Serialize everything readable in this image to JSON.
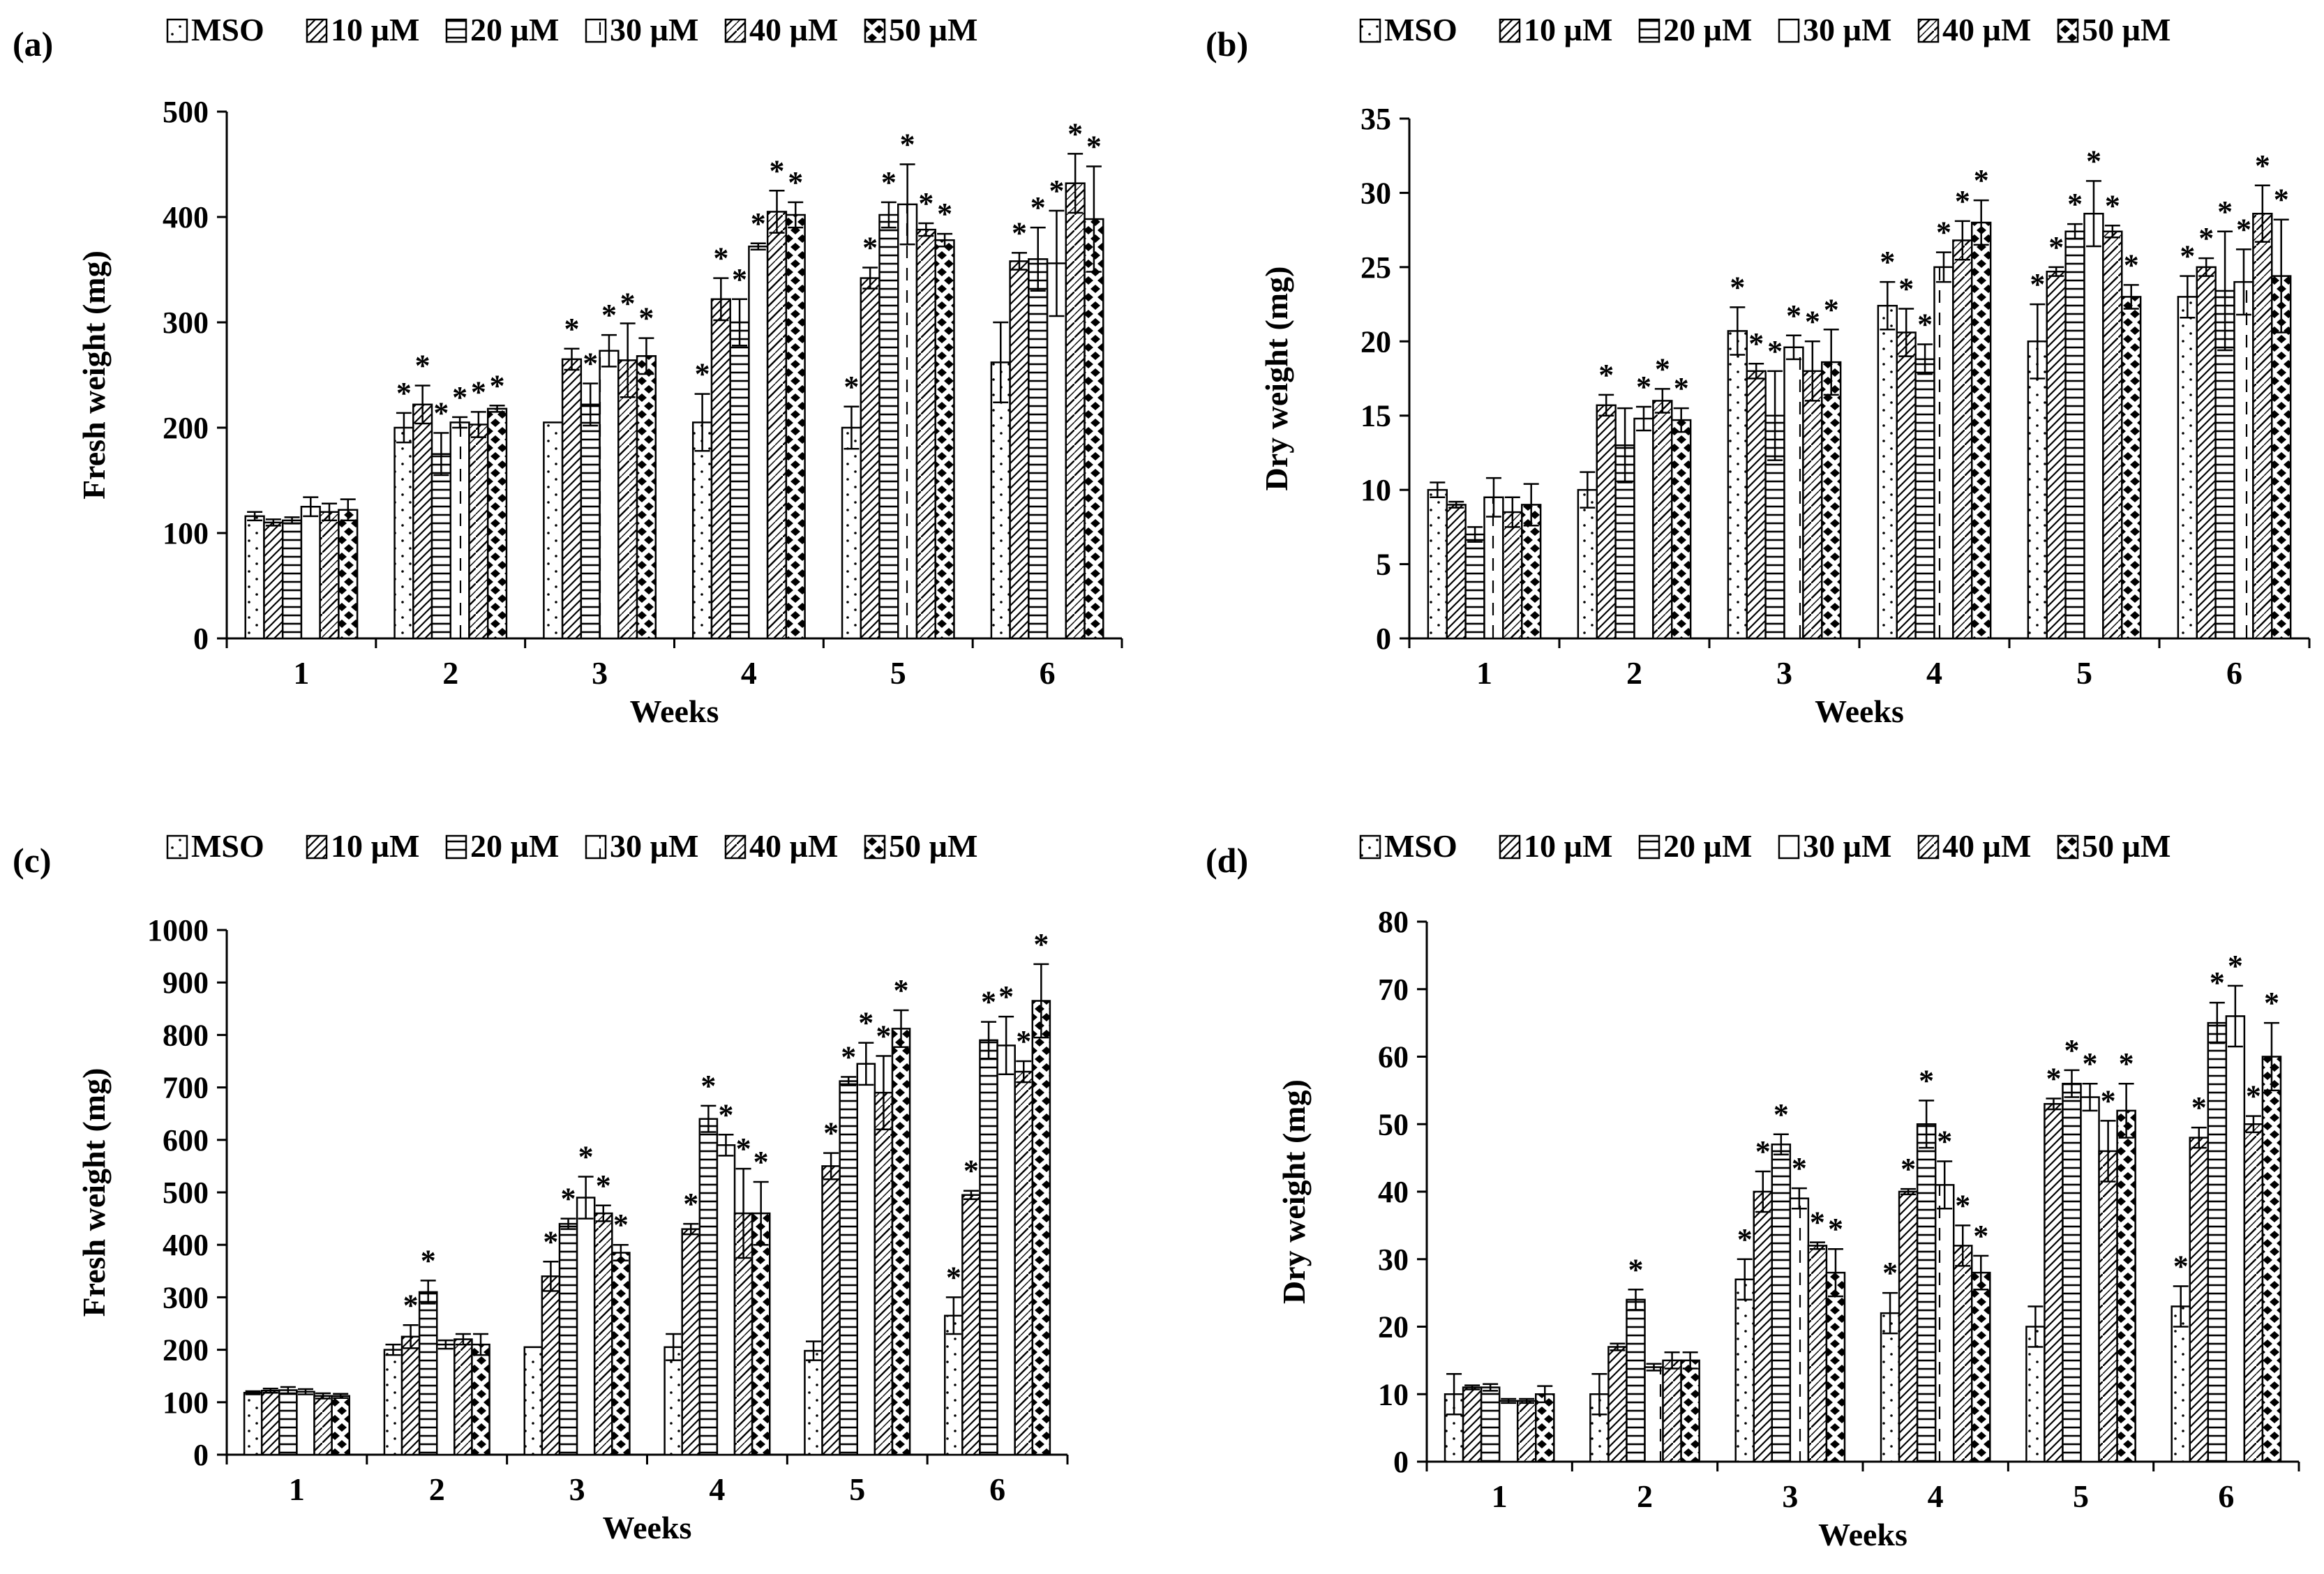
{
  "figure": {
    "legend_labels": [
      "MSO",
      "10 µM",
      "20 µM",
      "30 µM",
      "40 µM",
      "50 µM"
    ],
    "series_patterns": [
      "dots",
      "diagonal-left",
      "horizontal",
      "dashed-vertical",
      "diagonal-right-zigzag",
      "diamonds"
    ]
  },
  "chart_data": [
    {
      "panel_label": "(a)",
      "type": "bar",
      "ylabel": "Fresh weight (mg)",
      "xlabel": "Weeks",
      "categories": [
        "1",
        "2",
        "3",
        "4",
        "5",
        "6"
      ],
      "ylim": [
        0,
        500
      ],
      "yticks": [
        "0",
        "100",
        "200",
        "300",
        "400",
        "500"
      ],
      "series": [
        {
          "name": "MSO",
          "values": [
            116,
            200,
            205,
            205,
            200,
            262
          ],
          "errors": [
            4,
            14,
            0,
            27,
            20,
            38
          ],
          "sig": [
            false,
            true,
            false,
            true,
            true,
            false
          ]
        },
        {
          "name": "10 µM",
          "values": [
            110,
            222,
            265,
            322,
            342,
            358
          ],
          "errors": [
            3,
            18,
            10,
            20,
            10,
            8
          ],
          "sig": [
            false,
            true,
            true,
            true,
            true,
            true
          ]
        },
        {
          "name": "20 µM",
          "values": [
            112,
            175,
            222,
            300,
            402,
            360
          ],
          "errors": [
            3,
            20,
            20,
            22,
            12,
            30
          ],
          "sig": [
            false,
            true,
            true,
            true,
            true,
            true
          ]
        },
        {
          "name": "30 µM",
          "values": [
            125,
            205,
            273,
            372,
            412,
            356
          ],
          "errors": [
            9,
            5,
            15,
            3,
            38,
            50
          ],
          "sig": [
            false,
            true,
            true,
            true,
            true,
            true
          ]
        },
        {
          "name": "40 µM",
          "values": [
            120,
            203,
            264,
            405,
            388,
            432
          ],
          "errors": [
            8,
            12,
            35,
            20,
            6,
            28
          ],
          "sig": [
            false,
            true,
            true,
            true,
            true,
            true
          ]
        },
        {
          "name": "50 µM",
          "values": [
            122,
            218,
            268,
            402,
            378,
            398
          ],
          "errors": [
            10,
            3,
            17,
            12,
            6,
            50
          ],
          "sig": [
            false,
            true,
            true,
            true,
            true,
            true
          ]
        }
      ],
      "sig_marker": "*"
    },
    {
      "panel_label": "(b)",
      "type": "bar",
      "ylabel": "Dry weight (mg)",
      "xlabel": "Weeks",
      "categories": [
        "1",
        "2",
        "3",
        "4",
        "5",
        "6"
      ],
      "ylim": [
        0,
        35
      ],
      "yticks": [
        "0",
        "5",
        "10",
        "15",
        "20",
        "25",
        "30",
        "35"
      ],
      "series": [
        {
          "name": "MSO",
          "values": [
            10,
            10,
            20.7,
            22.4,
            20,
            23
          ],
          "errors": [
            0.5,
            1.2,
            1.6,
            1.6,
            2.5,
            1.4
          ],
          "sig": [
            false,
            false,
            true,
            true,
            true,
            true
          ]
        },
        {
          "name": "10 µM",
          "values": [
            9,
            15.7,
            18,
            20.6,
            24.7,
            25
          ],
          "errors": [
            0.2,
            0.7,
            0.5,
            1.6,
            0.3,
            0.6
          ],
          "sig": [
            false,
            true,
            true,
            true,
            true,
            true
          ]
        },
        {
          "name": "20 µM",
          "values": [
            7,
            13,
            15,
            18.8,
            27.4,
            23.4
          ],
          "errors": [
            0.5,
            2.5,
            3,
            1,
            0.5,
            4
          ],
          "sig": [
            false,
            false,
            true,
            true,
            true,
            true
          ]
        },
        {
          "name": "30 µM",
          "values": [
            9.5,
            14.8,
            19.6,
            25,
            28.6,
            24
          ],
          "errors": [
            1.3,
            0.8,
            0.8,
            1,
            2.2,
            2.2
          ],
          "sig": [
            false,
            true,
            true,
            true,
            true,
            true
          ]
        },
        {
          "name": "40 µM",
          "values": [
            8.5,
            16,
            18,
            26.8,
            27.4,
            28.6
          ],
          "errors": [
            1,
            0.8,
            2,
            1.3,
            0.4,
            1.9
          ],
          "sig": [
            false,
            true,
            true,
            true,
            true,
            true
          ]
        },
        {
          "name": "50 µM",
          "values": [
            9,
            14.7,
            18.6,
            28,
            23,
            24.4
          ],
          "errors": [
            1.4,
            0.8,
            2.2,
            1.5,
            0.8,
            3.8
          ],
          "sig": [
            false,
            true,
            true,
            true,
            true,
            true
          ]
        }
      ],
      "sig_marker": "*"
    },
    {
      "panel_label": "(c)",
      "type": "bar",
      "ylabel": "Fresh weight (mg)",
      "xlabel": "Weeks",
      "categories": [
        "1",
        "2",
        "3",
        "4",
        "5",
        "6"
      ],
      "ylim": [
        0,
        1000
      ],
      "yticks": [
        "0",
        "100",
        "200",
        "300",
        "400",
        "500",
        "600",
        "700",
        "800",
        "900",
        "1000"
      ],
      "series": [
        {
          "name": "MSO",
          "values": [
            118,
            200,
            205,
            205,
            198,
            265
          ],
          "errors": [
            3,
            10,
            0,
            25,
            18,
            35
          ],
          "sig": [
            false,
            false,
            false,
            false,
            false,
            true
          ]
        },
        {
          "name": "10 µM",
          "values": [
            122,
            225,
            340,
            430,
            550,
            495
          ],
          "errors": [
            4,
            22,
            28,
            10,
            25,
            8
          ],
          "sig": [
            false,
            true,
            true,
            true,
            true,
            true
          ]
        },
        {
          "name": "20 µM",
          "values": [
            123,
            310,
            440,
            640,
            712,
            790
          ],
          "errors": [
            6,
            22,
            10,
            25,
            8,
            35
          ],
          "sig": [
            false,
            true,
            true,
            true,
            true,
            true
          ]
        },
        {
          "name": "30 µM",
          "values": [
            120,
            210,
            490,
            590,
            745,
            780
          ],
          "errors": [
            5,
            8,
            40,
            20,
            40,
            55
          ],
          "sig": [
            false,
            false,
            true,
            true,
            true,
            true
          ]
        },
        {
          "name": "40 µM",
          "values": [
            112,
            220,
            460,
            460,
            690,
            730
          ],
          "errors": [
            5,
            10,
            15,
            85,
            70,
            20
          ],
          "sig": [
            false,
            false,
            true,
            true,
            true,
            true
          ]
        },
        {
          "name": "50 µM",
          "values": [
            112,
            210,
            385,
            460,
            812,
            865
          ],
          "errors": [
            4,
            20,
            15,
            60,
            35,
            70
          ],
          "sig": [
            false,
            false,
            true,
            true,
            true,
            true
          ]
        }
      ],
      "sig_marker": "*"
    },
    {
      "panel_label": "(d)",
      "type": "bar",
      "ylabel": "Dry weight (mg)",
      "xlabel": "Weeks",
      "categories": [
        "1",
        "2",
        "3",
        "4",
        "5",
        "6"
      ],
      "ylim": [
        0,
        80
      ],
      "yticks": [
        "0",
        "10",
        "20",
        "30",
        "40",
        "50",
        "60",
        "70",
        "80"
      ],
      "series": [
        {
          "name": "MSO",
          "values": [
            10,
            10,
            27,
            22,
            20,
            23
          ],
          "errors": [
            3,
            3,
            3,
            3,
            3,
            3
          ],
          "sig": [
            false,
            false,
            true,
            true,
            false,
            true
          ]
        },
        {
          "name": "10 µM",
          "values": [
            11,
            17,
            40,
            40,
            53,
            48
          ],
          "errors": [
            0.3,
            0.5,
            3,
            0.4,
            0.8,
            1.5
          ],
          "sig": [
            false,
            false,
            true,
            true,
            true,
            true
          ]
        },
        {
          "name": "20 µM",
          "values": [
            11,
            24,
            47,
            50,
            56,
            65
          ],
          "errors": [
            0.5,
            1.5,
            1.5,
            3.5,
            2,
            3
          ],
          "sig": [
            false,
            true,
            true,
            true,
            true,
            true
          ]
        },
        {
          "name": "30 µM",
          "values": [
            9,
            14,
            39,
            41,
            54,
            66
          ],
          "errors": [
            0.3,
            0.5,
            1.5,
            3.5,
            2,
            4.5
          ],
          "sig": [
            false,
            false,
            true,
            true,
            true,
            true
          ]
        },
        {
          "name": "40 µM",
          "values": [
            9,
            15,
            32,
            32,
            46,
            50
          ],
          "errors": [
            0.3,
            1.2,
            0.5,
            3,
            4.5,
            1.2
          ],
          "sig": [
            false,
            false,
            true,
            true,
            true,
            true
          ]
        },
        {
          "name": "50 µM",
          "values": [
            10,
            15,
            28,
            28,
            52,
            60
          ],
          "errors": [
            1.2,
            1.2,
            3.5,
            2.5,
            4,
            5
          ],
          "sig": [
            false,
            false,
            true,
            true,
            true,
            true
          ]
        }
      ],
      "sig_marker": "*"
    }
  ]
}
